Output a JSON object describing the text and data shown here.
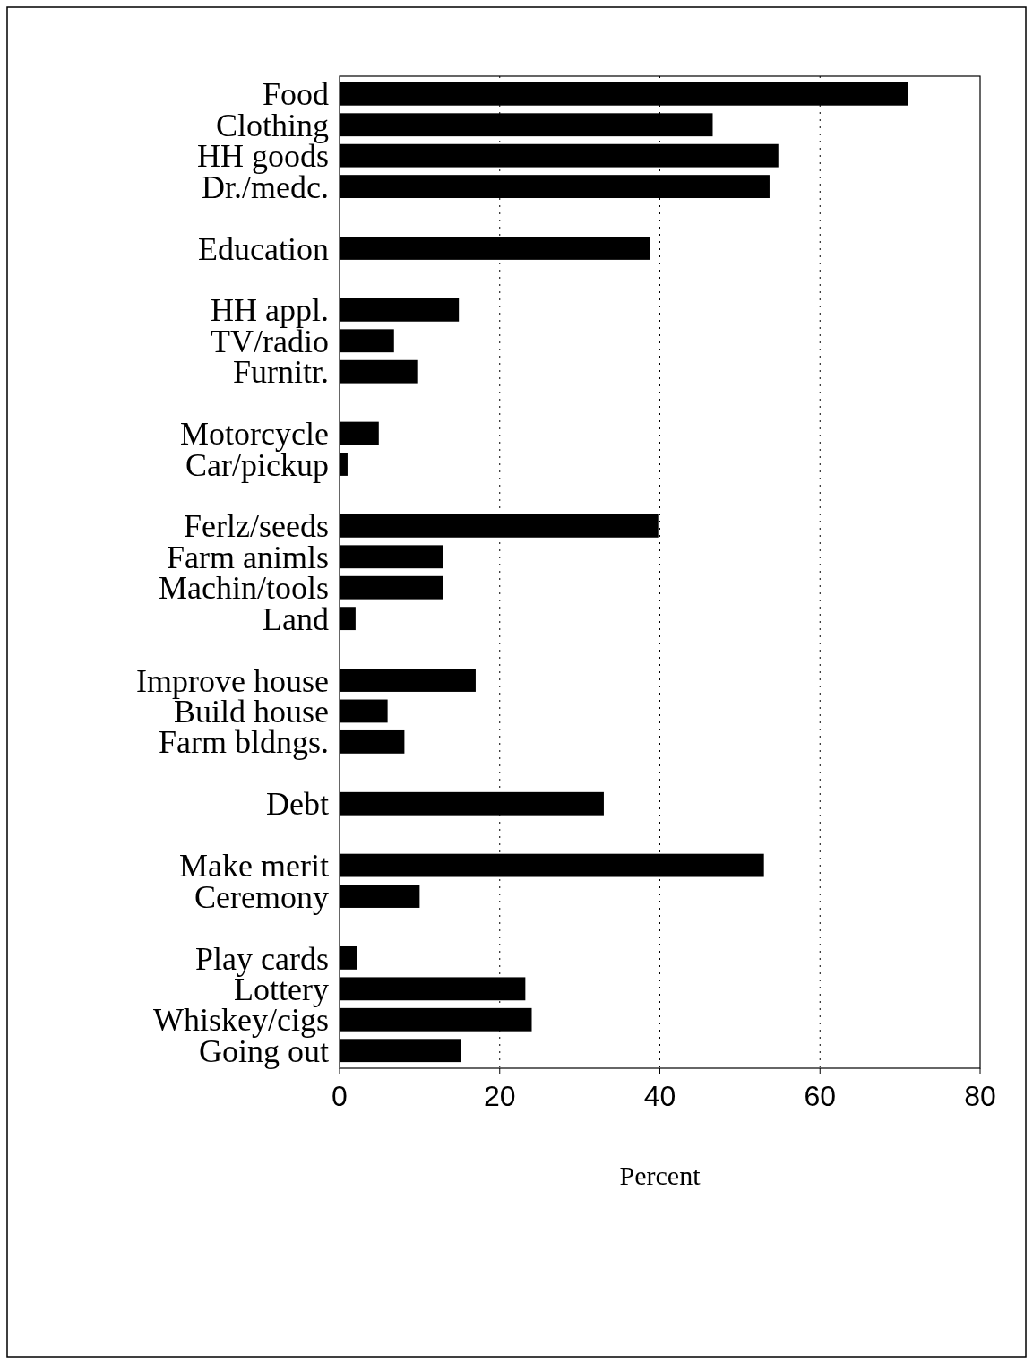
{
  "chart_data": {
    "type": "bar",
    "orientation": "horizontal",
    "xlabel": "Percent",
    "categories": [
      "Food",
      "Clothing",
      "HH goods",
      "Dr./medc.",
      null,
      "Education",
      null,
      "HH appl.",
      "TV/radio",
      "Furnitr.",
      null,
      "Motorcycle",
      "Car/pickup",
      null,
      "Ferlz/seeds",
      "Farm animls",
      "Machin/tools",
      "Land",
      null,
      "Improve house",
      "Build house",
      "Farm bldngs.",
      null,
      "Debt",
      null,
      "Make merit",
      "Ceremony",
      null,
      "Play cards",
      "Lottery",
      "Whiskey/cigs",
      "Going out"
    ],
    "values": [
      71,
      46.6,
      54.8,
      53.7,
      null,
      38.8,
      null,
      14.9,
      6.8,
      9.7,
      null,
      4.9,
      1,
      null,
      39.8,
      12.9,
      12.9,
      2,
      null,
      17,
      6,
      8.1,
      null,
      33,
      null,
      53,
      10,
      null,
      2.2,
      23.2,
      24,
      15.2
    ],
    "color": "#000000",
    "xlim": [
      0,
      80
    ],
    "xticks": [
      0,
      20,
      40,
      60,
      80
    ],
    "grid": "x"
  }
}
